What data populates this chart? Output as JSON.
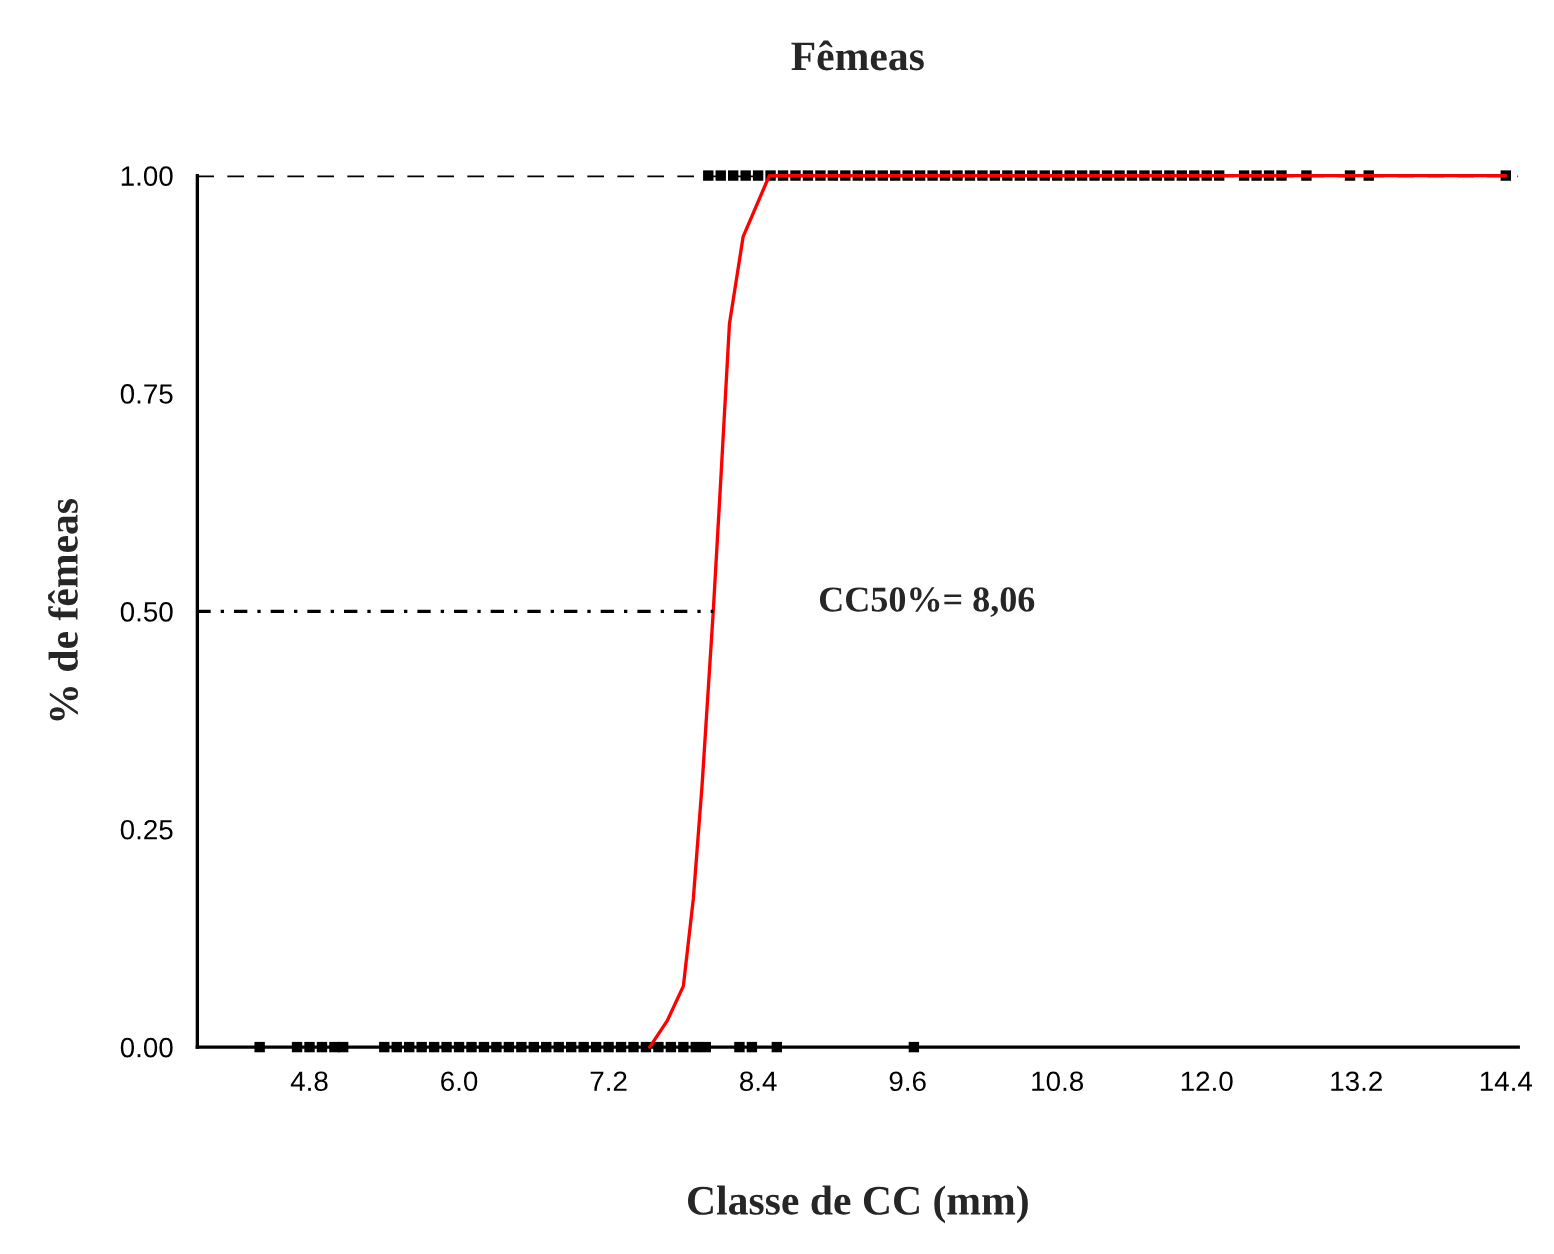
{
  "chart_data": {
    "type": "scatter",
    "title": "Fêmeas",
    "xlabel": "Classe de CC (mm)",
    "ylabel": "% de fêmeas",
    "xlim": [
      3.9,
      14.5
    ],
    "xticks": [
      4.8,
      {
        "value": 6,
        "label": "6.0"
      },
      7.2,
      8.4,
      9.6,
      10.8,
      {
        "value": 12,
        "label": "12.0"
      },
      13.2,
      14.4
    ],
    "ylim": [
      0,
      1.0
    ],
    "yticks": [
      {
        "value": 0,
        "label": "0.00"
      },
      {
        "value": 0.25,
        "label": "0.25"
      },
      {
        "value": 0.5,
        "label": "0.50"
      },
      {
        "value": 0.75,
        "label": "0.75"
      },
      {
        "value": 1.0,
        "label": "1.00"
      }
    ],
    "grid": false,
    "legend": false,
    "ref_lines": [
      {
        "axis": "y",
        "value": 1.0,
        "label": null,
        "color": "#000000",
        "line_style": "dashed"
      }
    ],
    "annotations": [
      "CC50%= 8,06"
    ],
    "series": [
      {
        "color": "#000000",
        "marker": "square",
        "x": [
          4.4,
          4.7,
          4.8,
          4.9,
          5.0,
          5.07,
          5.4,
          5.5,
          5.6,
          5.7,
          5.8,
          5.9,
          6.0,
          6.1,
          6.2,
          6.3,
          6.4,
          6.5,
          6.6,
          6.7,
          6.8,
          6.9,
          7.0,
          7.1,
          7.2,
          7.3,
          7.4,
          7.5,
          7.6,
          7.7,
          7.8,
          7.9,
          7.98,
          8.25,
          8.35,
          8.55,
          9.65
        ],
        "values": [
          0,
          0,
          0,
          0,
          0,
          0,
          0,
          0,
          0,
          0,
          0,
          0,
          0,
          0,
          0,
          0,
          0,
          0,
          0,
          0,
          0,
          0,
          0,
          0,
          0,
          0,
          0,
          0,
          0,
          0,
          0,
          0,
          0,
          0,
          0,
          0,
          0
        ]
      },
      {
        "color": "#000000",
        "marker": "square",
        "x": [
          8.0,
          8.1,
          8.2,
          8.3,
          8.4,
          8.5,
          8.6,
          8.7,
          8.8,
          8.9,
          9.0,
          9.1,
          9.2,
          9.3,
          9.4,
          9.5,
          9.6,
          9.7,
          9.8,
          9.9,
          10.0,
          10.1,
          10.2,
          10.3,
          10.4,
          10.5,
          10.6,
          10.7,
          10.8,
          10.9,
          11.0,
          11.1,
          11.2,
          11.3,
          11.4,
          11.5,
          11.6,
          11.7,
          11.8,
          11.9,
          12.0,
          12.1,
          12.3,
          12.4,
          12.5,
          12.6,
          12.8,
          13.15,
          13.3,
          14.4
        ],
        "values": [
          1,
          1,
          1,
          1,
          1,
          1,
          1,
          1,
          1,
          1,
          1,
          1,
          1,
          1,
          1,
          1,
          1,
          1,
          1,
          1,
          1,
          1,
          1,
          1,
          1,
          1,
          1,
          1,
          1,
          1,
          1,
          1,
          1,
          1,
          1,
          1,
          1,
          1,
          1,
          1,
          1,
          1,
          1,
          1,
          1,
          1,
          1,
          1,
          1,
          1
        ]
      },
      {
        "type": "line",
        "color": "#ff0000",
        "line_style": "solid",
        "marker": "none",
        "x": [
          7.53,
          7.67,
          7.8,
          7.88,
          7.95,
          8.04,
          8.1,
          8.17,
          8.28,
          8.49,
          14.4
        ],
        "values": [
          0,
          0.03,
          0.07,
          0.17,
          0.3,
          0.5,
          0.65,
          0.83,
          0.93,
          1.0,
          1.0
        ]
      },
      {
        "type": "line",
        "color": "#000000",
        "line_style": "dotted",
        "marker": "none",
        "x": [
          3.9,
          8.04
        ],
        "values": [
          0.5,
          0.5
        ]
      }
    ]
  }
}
